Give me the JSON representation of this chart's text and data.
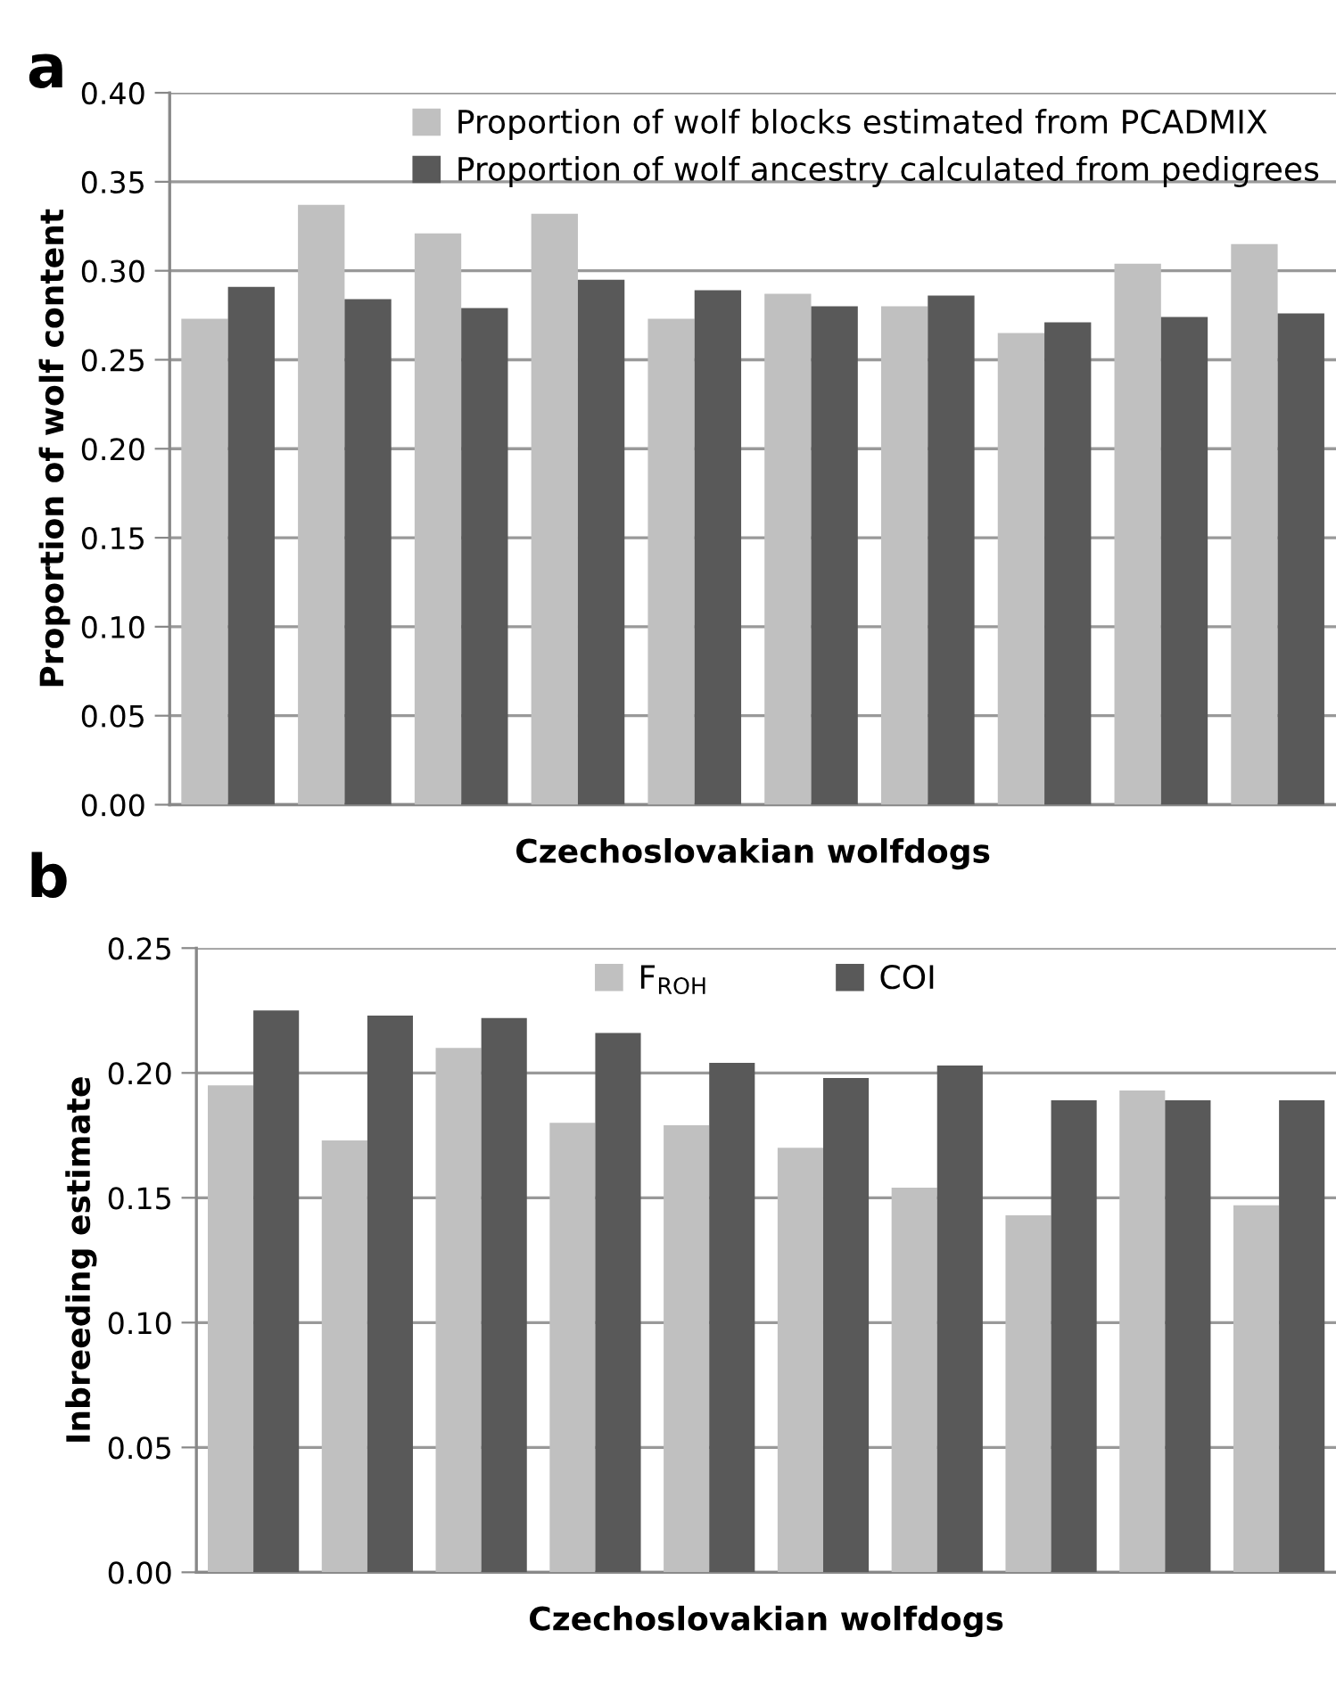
{
  "chart_data": [
    {
      "type": "bar",
      "title": "a",
      "xlabel": "Czechoslovakian wolfdogs",
      "ylabel": "Proportion of wolf content",
      "categories": [
        null,
        null,
        null,
        null,
        null,
        null,
        null,
        null,
        null,
        null
      ],
      "series": [
        {
          "name": "Proportion of wolf blocks estimated from PCADMIX",
          "color": "#c0c0c0",
          "values": [
            0.273,
            0.337,
            0.321,
            0.332,
            0.273,
            0.287,
            0.28,
            0.265,
            0.304,
            0.315
          ]
        },
        {
          "name": "Proportion of wolf ancestry calculated from pedigrees",
          "color": "#595959",
          "values": [
            0.291,
            0.284,
            0.279,
            0.295,
            0.289,
            0.28,
            0.286,
            0.271,
            0.274,
            0.276
          ]
        }
      ],
      "ylim": [
        0,
        0.4
      ],
      "yticks": [
        {
          "value": 0,
          "label": "0.00"
        },
        {
          "value": 0.05,
          "label": "0.05"
        },
        {
          "value": 0.1,
          "label": "0.10"
        },
        {
          "value": 0.15,
          "label": "0.15"
        },
        {
          "value": 0.2,
          "label": "0.20"
        },
        {
          "value": 0.25,
          "label": "0.25"
        },
        {
          "value": 0.3,
          "label": "0.30"
        },
        {
          "value": 0.35,
          "label": "0.35"
        },
        {
          "value": 0.4,
          "label": "0.40"
        }
      ],
      "grid": "y",
      "legend": "top right"
    },
    {
      "type": "bar",
      "title": "b",
      "xlabel": "Czechoslovakian wolfdogs",
      "ylabel": "Inbreeding estimate",
      "categories": [
        null,
        null,
        null,
        null,
        null,
        null,
        null,
        null,
        null,
        null
      ],
      "series": [
        {
          "name": "F$_{ROH}$",
          "color": "#c0c0c0",
          "values": [
            0.195,
            0.173,
            0.21,
            0.18,
            0.179,
            0.17,
            0.154,
            0.143,
            0.193,
            0.147
          ]
        },
        {
          "name": "COI",
          "color": "#595959",
          "values": [
            0.225,
            0.223,
            0.222,
            0.216,
            0.204,
            0.198,
            0.203,
            0.189,
            0.189,
            0.189
          ]
        }
      ],
      "ylim": [
        0,
        0.25
      ],
      "yticks": [
        {
          "value": 0,
          "label": "0.00"
        },
        {
          "value": 0.05,
          "label": "0.05"
        },
        {
          "value": 0.1,
          "label": "0.10"
        },
        {
          "value": 0.15,
          "label": "0.15"
        },
        {
          "value": 0.2,
          "label": "0.20"
        },
        {
          "value": 0.25,
          "label": "0.25"
        }
      ],
      "grid": "y",
      "legend": "top"
    }
  ]
}
